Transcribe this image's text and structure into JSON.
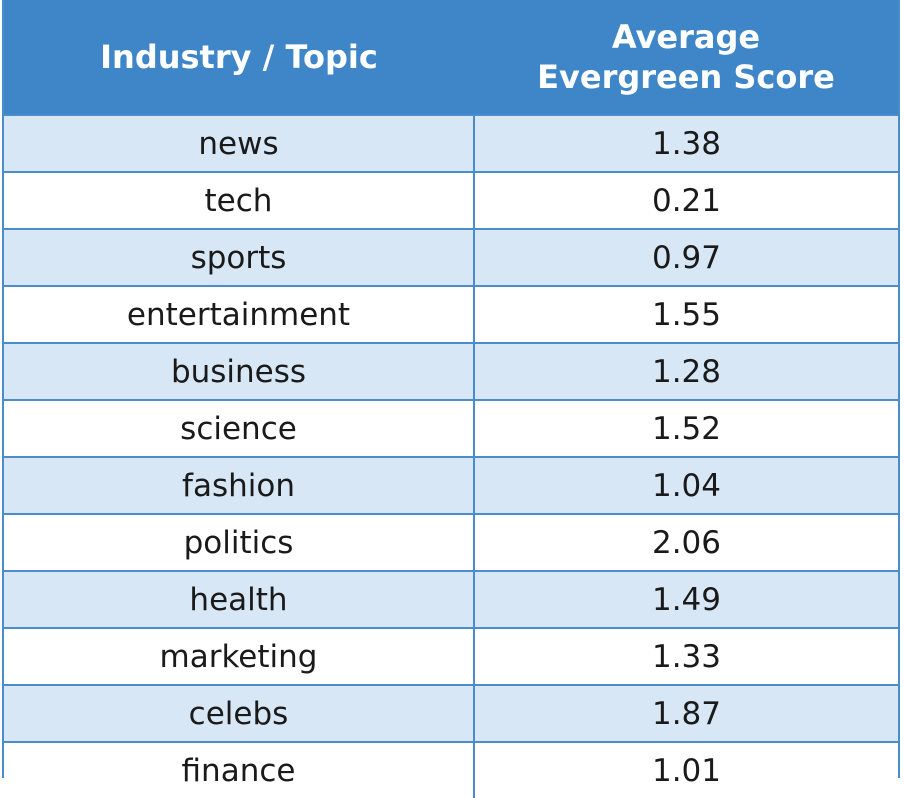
{
  "table": {
    "header": [
      "Industry / Topic",
      "Average Evergreen Score"
    ],
    "rows": [
      [
        "news",
        "1.38"
      ],
      [
        "tech",
        "0.21"
      ],
      [
        "sports",
        "0.97"
      ],
      [
        "entertainment",
        "1.55"
      ],
      [
        "business",
        "1.28"
      ],
      [
        "science",
        "1.52"
      ],
      [
        "fashion",
        "1.04"
      ],
      [
        "politics",
        "2.06"
      ],
      [
        "health",
        "1.49"
      ],
      [
        "marketing",
        "1.33"
      ],
      [
        "celebs",
        "1.87"
      ],
      [
        "finance",
        "1.01"
      ]
    ]
  }
}
